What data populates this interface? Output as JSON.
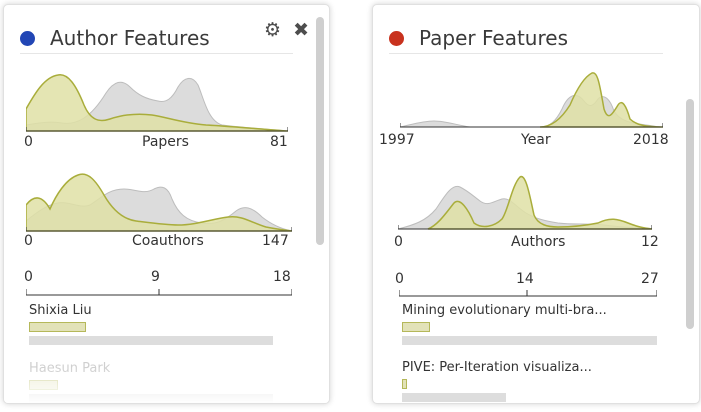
{
  "colors": {
    "author_dot": "#2246b5",
    "paper_dot": "#c8321e",
    "olive": "#a9ad3b",
    "olive_fill": "#dfe0a6",
    "gray_fill": "#dcdcdc"
  },
  "author_panel": {
    "title": "Author Features",
    "icons": {
      "settings": "gear-icon",
      "close": "close-icon"
    },
    "papers_dist": {
      "label": "Papers",
      "min": "0",
      "max": "81"
    },
    "coauthors_dist": {
      "label": "Coauthors",
      "min": "0",
      "max": "147"
    },
    "bar_axis": {
      "ticks": [
        "0",
        "9",
        "18"
      ]
    },
    "items": [
      {
        "name": "Shixia Liu",
        "value": 4,
        "total": 17
      },
      {
        "name": "Haesun Park",
        "value": 2,
        "total": 17
      }
    ]
  },
  "paper_panel": {
    "title": "Paper Features",
    "year_dist": {
      "label": "Year",
      "min": "1997",
      "max": "2018"
    },
    "authors_dist": {
      "label": "Authors",
      "min": "0",
      "max": "12"
    },
    "bar_axis": {
      "ticks": [
        "0",
        "14",
        "27"
      ]
    },
    "items": [
      {
        "title": "Mining evolutionary multi-bra...",
        "value": 3,
        "total": 27
      },
      {
        "title": "PIVE: Per-Iteration visualiza...",
        "value": 0.5,
        "total": 11
      }
    ]
  }
}
